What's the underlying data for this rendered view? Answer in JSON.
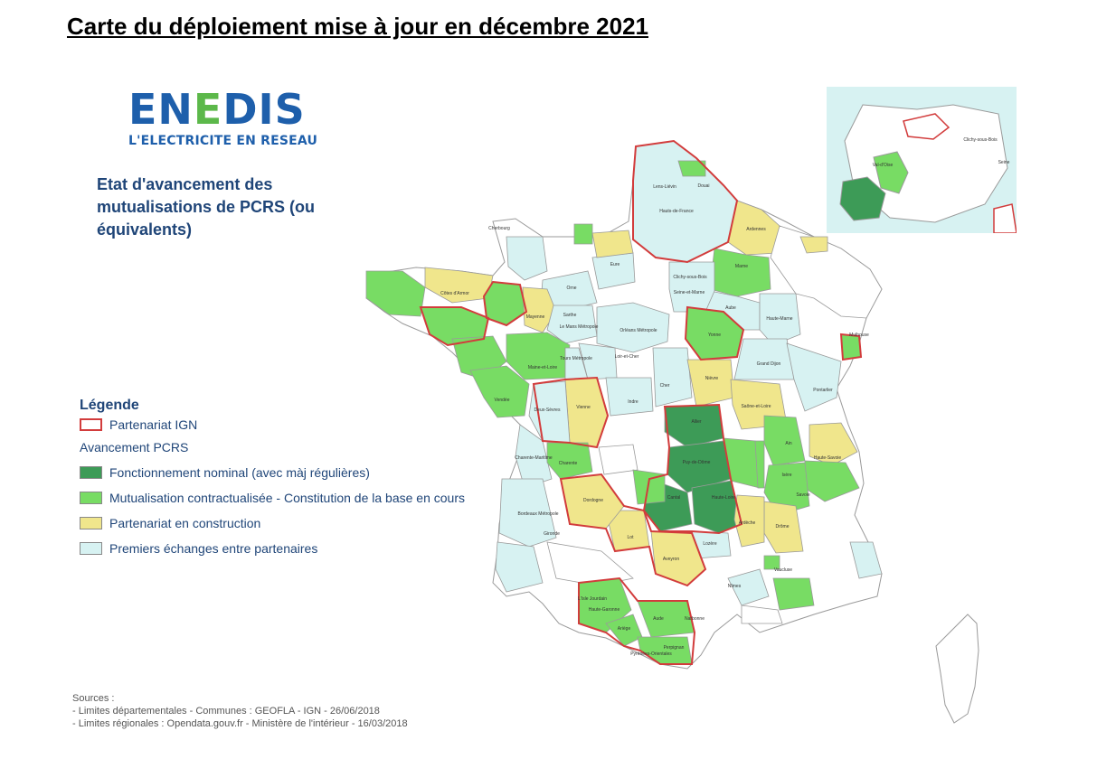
{
  "page": {
    "title": "Carte du déploiement mise à jour en décembre 2021"
  },
  "logo": {
    "word_part1": "EN",
    "word_part2": "E",
    "word_part3": "DIS",
    "tagline": "L'ELECTRICITE EN RESEAU"
  },
  "map": {
    "heading": "Etat d'avancement des mutualisations de PCRS (ou équivalents)",
    "colors": {
      "nominal": "#3d9b57",
      "contractual": "#78dc64",
      "construction": "#f0e68c",
      "exchanges": "#d7f2f2",
      "none": "#ffffff",
      "ign_border": "#d23c3c",
      "dept_border": "#9a9a9a"
    },
    "labels": [
      "Lens-Liévin",
      "Douai",
      "Hauts-de-France",
      "Ardennes",
      "Marne",
      "Aube",
      "Haute-Marne",
      "Mulhouse",
      "Côtes d'Armor",
      "Mayenne",
      "Orne",
      "Eure",
      "Loir-et-Cher",
      "Cher",
      "Indre",
      "Nièvre",
      "Yonne",
      "Saône-et-Loire",
      "Allier",
      "Puy-de-Dôme",
      "Cantal",
      "Haute-Loire",
      "Ain",
      "Savoie",
      "Isère",
      "Drôme",
      "Ardèche",
      "Lozère",
      "Aveyron",
      "Lot",
      "Dordogne",
      "Charente",
      "Charente-Maritime",
      "Vendée",
      "Deux-Sèvres",
      "Vienne",
      "Gironde",
      "Bordeaux Métropole",
      "Haute-Garonne",
      "Ariège",
      "Aude",
      "Narbonne",
      "Pyrénées-Orientales",
      "Perpignan",
      "Vaucluse",
      "Nîmes",
      "Grand Dijon",
      "Tours Métropole",
      "Le Mans Métropole",
      "Orléans Métropole",
      "Sarthe",
      "Maine-et-Loire",
      "Haute-Savoie",
      "Pontarlier",
      "Seine-et-Marne",
      "Clichy-sous-Bois",
      "Cherbourg",
      "L'Isle Jourdain"
    ],
    "inset_labels": [
      "Val-d'Oise",
      "Clichy-sous-Bois",
      "Seine"
    ]
  },
  "legend": {
    "title": "Légende",
    "items": [
      {
        "label": "Partenariat IGN",
        "kind": "outline"
      },
      {
        "label": "Avancement PCRS",
        "kind": "subtitle"
      },
      {
        "label": "Fonctionnement nominal (avec màj régulières)",
        "kind": "nominal"
      },
      {
        "label": "Mutualisation contractualisée - Constitution de la base en cours",
        "kind": "contractual"
      },
      {
        "label": "Partenariat en construction",
        "kind": "construction"
      },
      {
        "label": "Premiers échanges entre partenaires",
        "kind": "exchanges"
      }
    ]
  },
  "sources": {
    "title": "Sources :",
    "line1": "- Limites départementales - Communes : GEOFLA - IGN - 26/06/2018",
    "line2": "- Limites régionales : Opendata.gouv.fr - Ministère de l'intérieur - 16/03/2018"
  }
}
